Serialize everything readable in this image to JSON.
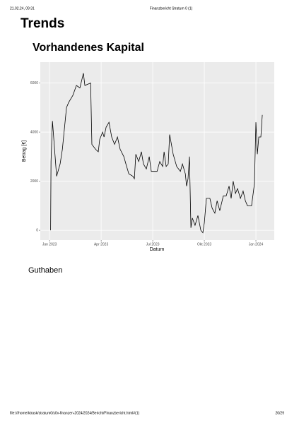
{
  "header": {
    "datetime": "21.02.24, 09:31",
    "title": "Finanzbericht Stratum 0 (1)"
  },
  "heading": "Trends",
  "subheading": "Vorhandenes Kapital",
  "chart_data": {
    "type": "line",
    "color": "#000000",
    "grid": true,
    "x_label": "Datum",
    "y_label": "Betrag [€]",
    "xlim": [
      2022.955,
      2024.089
    ],
    "ylim": [
      -400,
      6850
    ],
    "xticks": [
      {
        "value": 2023.0,
        "label": "Jan 2023"
      },
      {
        "value": 2023.25,
        "label": "Apr 2023"
      },
      {
        "value": 2023.5,
        "label": "Jul 2023"
      },
      {
        "value": 2023.75,
        "label": "Okt 2023"
      },
      {
        "value": 2024.0,
        "label": "Jan 2024"
      }
    ],
    "yticks": [
      0,
      2000,
      4000,
      6000
    ],
    "x": [
      2023.005,
      2023.007,
      2023.014,
      2023.034,
      2023.051,
      2023.062,
      2023.082,
      2023.092,
      2023.113,
      2023.13,
      2023.147,
      2023.164,
      2023.171,
      2023.199,
      2023.205,
      2023.223,
      2023.236,
      2023.243,
      2023.257,
      2023.264,
      2023.274,
      2023.288,
      2023.301,
      2023.315,
      2023.329,
      2023.342,
      2023.36,
      2023.37,
      2023.384,
      2023.404,
      2023.411,
      2023.418,
      2023.432,
      2023.445,
      2023.455,
      2023.469,
      2023.483,
      2023.493,
      2023.521,
      2023.534,
      2023.548,
      2023.555,
      2023.565,
      2023.575,
      2023.582,
      2023.599,
      2023.616,
      2023.634,
      2023.644,
      2023.658,
      2023.664,
      2023.671,
      2023.678,
      2023.685,
      2023.692,
      2023.705,
      2023.719,
      2023.733,
      2023.743,
      2023.75,
      2023.76,
      2023.777,
      2023.788,
      2023.801,
      2023.812,
      2023.825,
      2023.842,
      2023.856,
      2023.87,
      2023.88,
      2023.89,
      2023.901,
      2023.911,
      2023.925,
      2023.938,
      2023.949,
      2023.959,
      2023.979,
      2023.993,
      2024.0,
      2024.007,
      2024.014,
      2024.024,
      2024.031
    ],
    "values": [
      0,
      2800,
      4450,
      2200,
      2700,
      3300,
      5000,
      5200,
      5500,
      5900,
      5800,
      6400,
      5900,
      6000,
      3500,
      3300,
      3200,
      3700,
      4000,
      3800,
      4200,
      4400,
      3800,
      3500,
      3800,
      3300,
      3000,
      2700,
      2300,
      2200,
      2100,
      3100,
      2800,
      3200,
      2700,
      2500,
      3000,
      2400,
      2400,
      2800,
      2600,
      3200,
      2600,
      2700,
      3900,
      3100,
      2600,
      2400,
      2700,
      2300,
      1800,
      2100,
      3000,
      100,
      500,
      200,
      600,
      0,
      -100,
      300,
      1300,
      1300,
      900,
      700,
      1200,
      800,
      1400,
      1400,
      1800,
      1300,
      2000,
      1500,
      1700,
      1300,
      1600,
      1200,
      1000,
      1000,
      1900,
      4400,
      3100,
      3800,
      3800,
      4700
    ]
  },
  "section": "Guthaben",
  "footer": {
    "url": "file:///home/ktrask/stratum0/s0v-finanzen-2024/2024/Bericht/Finanzbericht.html#(1)",
    "page": "20/29"
  }
}
